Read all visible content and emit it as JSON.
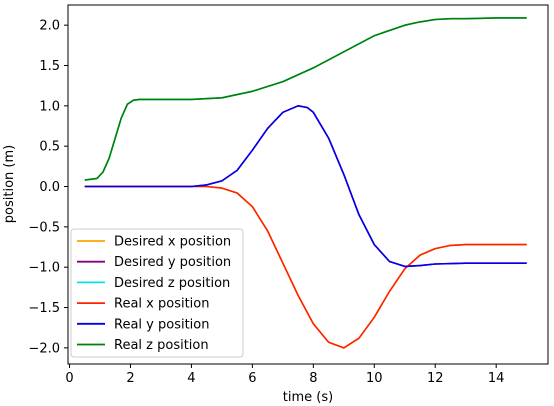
{
  "chart_data": {
    "type": "line",
    "title": "",
    "xlabel": "time (s)",
    "ylabel": "position (m)",
    "xlim": [
      -0.05,
      15.7
    ],
    "ylim": [
      -2.2,
      2.25
    ],
    "x_ticks": [
      0,
      2,
      4,
      6,
      8,
      10,
      12,
      14
    ],
    "x_tick_labels": [
      "0",
      "2",
      "4",
      "6",
      "8",
      "10",
      "12",
      "14"
    ],
    "y_ticks": [
      -2.0,
      -1.5,
      -1.0,
      -0.5,
      0.0,
      0.5,
      1.0,
      1.5,
      2.0
    ],
    "y_tick_labels": [
      "−2.0",
      "−1.5",
      "−1.0",
      "−0.5",
      "0.0",
      "0.5",
      "1.0",
      "1.5",
      "2.0"
    ],
    "grid": false,
    "legend_position": "bottom-left",
    "series": [
      {
        "name": "Desired x position",
        "color": "#ffa500",
        "x": [
          0.5,
          3.5,
          4.5,
          5,
          5.5,
          6,
          6.5,
          7,
          7.5,
          8,
          8.5,
          9,
          9.5,
          10,
          10.5,
          11,
          11.5,
          12,
          12.5,
          13,
          14,
          15
        ],
        "y": [
          0,
          0,
          0,
          -0.02,
          -0.08,
          -0.25,
          -0.55,
          -0.95,
          -1.35,
          -1.7,
          -1.93,
          -2.0,
          -1.88,
          -1.62,
          -1.3,
          -1.02,
          -0.85,
          -0.77,
          -0.73,
          -0.72,
          -0.72,
          -0.72
        ]
      },
      {
        "name": "Desired y position",
        "color": "#800080",
        "x": [
          0.5,
          3.5,
          4,
          4.5,
          5,
          5.5,
          6,
          6.5,
          7,
          7.5,
          7.8,
          8,
          8.5,
          9,
          9.5,
          10,
          10.5,
          11,
          11.5,
          12,
          13,
          15
        ],
        "y": [
          0,
          0,
          0,
          0.02,
          0.07,
          0.2,
          0.45,
          0.72,
          0.92,
          1.0,
          0.98,
          0.92,
          0.6,
          0.15,
          -0.35,
          -0.72,
          -0.93,
          -0.99,
          -0.98,
          -0.96,
          -0.95,
          -0.95
        ]
      },
      {
        "name": "Desired z position",
        "color": "#00e5ee",
        "x": [
          0.5,
          0.9,
          1.1,
          1.3,
          1.5,
          1.7,
          1.9,
          2.1,
          2.3,
          3,
          4,
          5,
          6,
          7,
          8,
          9,
          10,
          11,
          11.5,
          12,
          12.5,
          13,
          14,
          15
        ],
        "y": [
          0.08,
          0.1,
          0.18,
          0.35,
          0.6,
          0.85,
          1.02,
          1.07,
          1.08,
          1.08,
          1.08,
          1.1,
          1.18,
          1.3,
          1.47,
          1.67,
          1.87,
          2.0,
          2.04,
          2.07,
          2.08,
          2.08,
          2.09,
          2.09
        ]
      },
      {
        "name": "Real x position",
        "color": "#ff2200",
        "x": [
          0.5,
          3.5,
          4.5,
          5,
          5.5,
          6,
          6.5,
          7,
          7.5,
          8,
          8.5,
          9,
          9.5,
          10,
          10.5,
          11,
          11.5,
          12,
          12.5,
          13,
          14,
          15
        ],
        "y": [
          0,
          0,
          0,
          -0.02,
          -0.08,
          -0.25,
          -0.55,
          -0.95,
          -1.35,
          -1.7,
          -1.93,
          -2.0,
          -1.88,
          -1.62,
          -1.3,
          -1.02,
          -0.85,
          -0.77,
          -0.73,
          -0.72,
          -0.72,
          -0.72
        ]
      },
      {
        "name": "Real y position",
        "color": "#0000ee",
        "x": [
          0.5,
          3.5,
          4,
          4.5,
          5,
          5.5,
          6,
          6.5,
          7,
          7.5,
          7.8,
          8,
          8.5,
          9,
          9.5,
          10,
          10.5,
          11,
          11.5,
          12,
          13,
          15
        ],
        "y": [
          0,
          0,
          0,
          0.02,
          0.07,
          0.2,
          0.45,
          0.72,
          0.92,
          1.0,
          0.98,
          0.92,
          0.6,
          0.15,
          -0.35,
          -0.72,
          -0.93,
          -0.99,
          -0.98,
          -0.96,
          -0.95,
          -0.95
        ]
      },
      {
        "name": "Real z position",
        "color": "#008000",
        "x": [
          0.5,
          0.9,
          1.1,
          1.3,
          1.5,
          1.7,
          1.9,
          2.1,
          2.3,
          3,
          4,
          5,
          6,
          7,
          8,
          9,
          10,
          11,
          11.5,
          12,
          12.5,
          13,
          14,
          15
        ],
        "y": [
          0.08,
          0.1,
          0.18,
          0.35,
          0.6,
          0.85,
          1.02,
          1.07,
          1.08,
          1.08,
          1.08,
          1.1,
          1.18,
          1.3,
          1.47,
          1.67,
          1.87,
          2.0,
          2.04,
          2.07,
          2.08,
          2.08,
          2.09,
          2.09
        ]
      }
    ]
  }
}
